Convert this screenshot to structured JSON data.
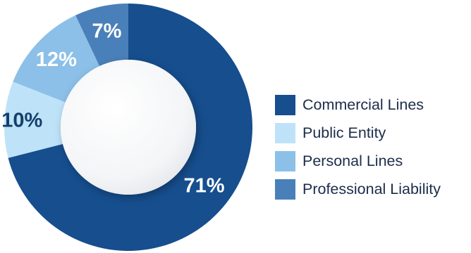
{
  "chart_data": {
    "type": "pie",
    "variant": "donut",
    "title": "",
    "categories": [
      "Commercial Lines",
      "Public Entity",
      "Personal Lines",
      "Professional Liability"
    ],
    "values": [
      71,
      10,
      12,
      7
    ],
    "value_labels": [
      "71%",
      "10%",
      "12%",
      "7%"
    ],
    "colors": [
      "#164e8e",
      "#bee3f8",
      "#8cc0e8",
      "#4a80b9"
    ],
    "label_colors": [
      "#ffffff",
      "#163e6b",
      "#ffffff",
      "#ffffff"
    ],
    "start_angle": "top",
    "direction": "clockwise",
    "legend": {
      "position": "right",
      "entries": [
        "Commercial Lines",
        "Public Entity",
        "Personal Lines",
        "Professional Liability"
      ]
    }
  }
}
